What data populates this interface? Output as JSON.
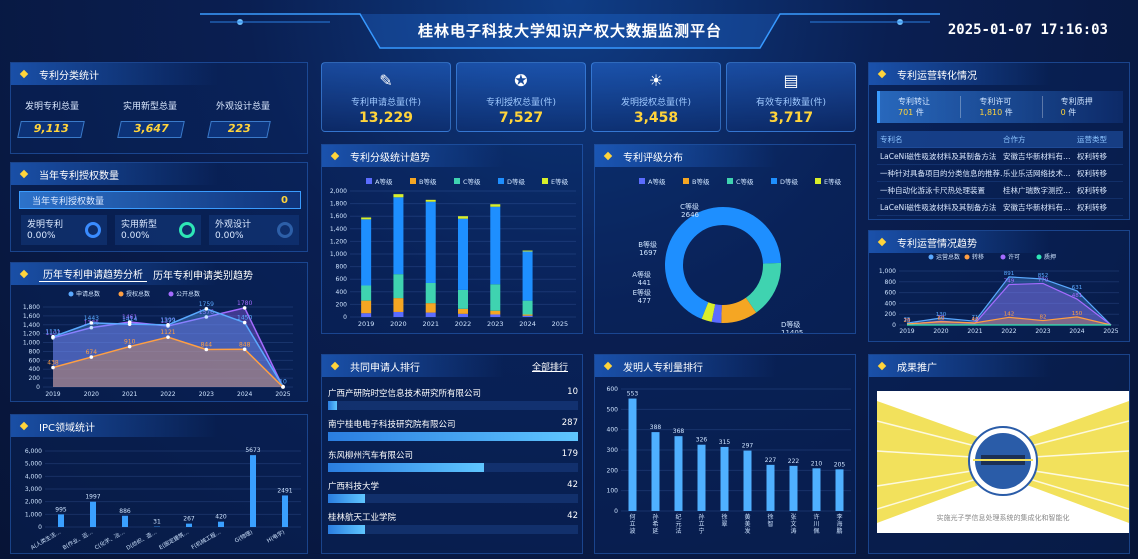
{
  "header": {
    "title": "桂林电子科技大学知识产权大数据监测平台",
    "datetime": "2025-01-07 17:16:03"
  },
  "stats": [
    {
      "label": "专利申请总量(件)",
      "value": "13,229",
      "icon": "edit-icon"
    },
    {
      "label": "专利授权总量(件)",
      "value": "7,527",
      "icon": "award-icon"
    },
    {
      "label": "发明授权总量(件)",
      "value": "3,458",
      "icon": "bulb-icon"
    },
    {
      "label": "有效专利数量(件)",
      "value": "3,717",
      "icon": "card-icon"
    }
  ],
  "category_stats": {
    "title": "专利分类统计",
    "items": [
      {
        "label": "发明专利总量",
        "value": "9,113"
      },
      {
        "label": "实用新型总量",
        "value": "3,647"
      },
      {
        "label": "外观设计总量",
        "value": "223"
      }
    ]
  },
  "annual_grant": {
    "title": "当年专利授权数量",
    "banner_label": "当年专利授权数量",
    "banner_value": "0",
    "items": [
      {
        "label": "发明专利",
        "value": "0.00%",
        "color": "#3a8cff"
      },
      {
        "label": "实用新型",
        "value": "0.00%",
        "color": "#2ee6b6"
      },
      {
        "label": "外观设计",
        "value": "0.00%",
        "color": "#2d5fa8"
      }
    ]
  },
  "trend": {
    "tab1": "历年专利申请趋势分析",
    "tab2": "历年专利申请类别趋势",
    "chart_data": {
      "type": "area",
      "x": [
        "2019",
        "2020",
        "2021",
        "2022",
        "2023",
        "2024",
        "2025"
      ],
      "ylim": [
        0,
        1800
      ],
      "yticks": [
        "0",
        "200",
        "400",
        "600",
        "800",
        "1,000",
        "1,200",
        "1,400",
        "1,600",
        "1,800"
      ],
      "series": [
        {
          "name": "申请总数",
          "color": "#5aa9ff",
          "values": [
            1131,
            1443,
            1414,
            1399,
            1759,
            1450,
            10
          ]
        },
        {
          "name": "授权总数",
          "color": "#ff9f43",
          "values": [
            438,
            674,
            910,
            1121,
            844,
            848,
            0
          ]
        },
        {
          "name": "公开总数",
          "color": "#a46bff",
          "values": [
            1107,
            1336,
            1461,
            1373,
            1576,
            1780,
            0
          ]
        }
      ]
    }
  },
  "ipc": {
    "title": "IPC领域统计",
    "chart_data": {
      "type": "bar",
      "categories": [
        "A(人类生活…",
        "B(作业、运…",
        "C(化学、冶…",
        "D(纺织、造…",
        "E(固定建筑…",
        "F(机械工程…",
        "G(物理)",
        "H(电学)"
      ],
      "values": [
        995,
        1997,
        886,
        31,
        267,
        420,
        5673,
        2491
      ],
      "ylim": [
        0,
        6000
      ],
      "yticks": [
        "0",
        "1,000",
        "2,000",
        "3,000",
        "4,000",
        "5,000",
        "6,000"
      ]
    }
  },
  "level_stats": {
    "title": "专利分级统计趋势",
    "chart_data": {
      "type": "bar",
      "categories": [
        "2019",
        "2020",
        "2021",
        "2022",
        "2023",
        "2024",
        "2025"
      ],
      "ylim": [
        0,
        2000
      ],
      "yticks": [
        "0",
        "200",
        "400",
        "600",
        "800",
        "1,000",
        "1,200",
        "1,400",
        "1,600",
        "1,800",
        "2,000"
      ],
      "series": [
        {
          "name": "A等级",
          "color": "#5b6cff",
          "values": [
            60,
            80,
            70,
            50,
            40,
            20,
            0
          ]
        },
        {
          "name": "B等级",
          "color": "#f5a623",
          "values": [
            200,
            220,
            150,
            80,
            60,
            20,
            0
          ]
        },
        {
          "name": "C等级",
          "color": "#3fd3b0",
          "values": [
            240,
            380,
            320,
            300,
            420,
            220,
            0
          ]
        },
        {
          "name": "D等级",
          "color": "#1e8fff",
          "values": [
            1050,
            1220,
            1290,
            1130,
            1230,
            780,
            0
          ]
        },
        {
          "name": "E等级",
          "color": "#d8ef2a",
          "values": [
            30,
            50,
            30,
            40,
            40,
            15,
            0
          ]
        }
      ]
    }
  },
  "rating": {
    "title": "专利评级分布",
    "chart_data": {
      "type": "pie",
      "slices": [
        {
          "name": "A等级",
          "value": 441,
          "color": "#5b6cff"
        },
        {
          "name": "B等级",
          "value": 1697,
          "color": "#f5a623"
        },
        {
          "name": "C等级",
          "value": 2646,
          "color": "#3fd3b0"
        },
        {
          "name": "D等级",
          "value": 11405,
          "color": "#1e8fff"
        },
        {
          "name": "E等级",
          "value": 477,
          "color": "#d8ef2a"
        }
      ]
    }
  },
  "applicants": {
    "title": "共同申请人排行",
    "link": "全部排行",
    "max": 287,
    "items": [
      {
        "name": "广西产研院时空信息技术研究所有限公司",
        "value": 10
      },
      {
        "name": "南宁桂电电子科技研究院有限公司",
        "value": 287
      },
      {
        "name": "东风柳州汽车有限公司",
        "value": 179
      },
      {
        "name": "广西科技大学",
        "value": 42
      },
      {
        "name": "桂林航天工业学院",
        "value": 42
      }
    ]
  },
  "inventors": {
    "title": "发明人专利量排行",
    "chart_data": {
      "type": "bar",
      "categories": [
        "何立波",
        "孙希延",
        "纪元法",
        "孙立宁",
        "徐翠",
        "黄美发",
        "徐智",
        "张文涛",
        "许川佩",
        "李海鹏"
      ],
      "values": [
        553,
        388,
        368,
        326,
        315,
        297,
        227,
        222,
        210,
        205
      ],
      "ylim": [
        0,
        600
      ],
      "yticks": [
        "0",
        "100",
        "200",
        "300",
        "400",
        "500",
        "600"
      ]
    }
  },
  "operation": {
    "title": "专利运营转化情况",
    "summary": [
      {
        "label": "专利转让",
        "value": "701",
        "unit": "件"
      },
      {
        "label": "专利许可",
        "value": "1,810",
        "unit": "件"
      },
      {
        "label": "专利质押",
        "value": "0",
        "unit": "件"
      }
    ],
    "columns": [
      "专利名",
      "合作方",
      "运营类型"
    ],
    "rows": [
      [
        "LaCeNi磁性吸波材料及其制备方法",
        "安徽吉华新材料有…",
        "权利转移"
      ],
      [
        "一种针对具备项目的分类信息的推荐…",
        "乐业乐活网络技术…",
        "权利转移"
      ],
      [
        "一种自动化游泳卡尺热处理装置",
        "桂林广瑞数字测控…",
        "权利转移"
      ],
      [
        "LaCeNi磁性吸波材料及其制备方法",
        "安徽吉华新材料有…",
        "权利转移"
      ]
    ]
  },
  "op_trend": {
    "title": "专利运营情况趋势",
    "chart_data": {
      "type": "area",
      "x": [
        "2019",
        "2020",
        "2021",
        "2022",
        "2023",
        "2024",
        "2025"
      ],
      "ylim": [
        0,
        1000
      ],
      "yticks": [
        "0",
        "200",
        "400",
        "600",
        "800",
        "1,000"
      ],
      "series": [
        {
          "name": "运营总数",
          "color": "#5aa9ff",
          "values": [
            35,
            130,
            71,
            891,
            852,
            631,
            0
          ]
        },
        {
          "name": "转移",
          "color": "#ff9f43",
          "values": [
            20,
            60,
            40,
            142,
            82,
            150,
            0
          ]
        },
        {
          "name": "许可",
          "color": "#a46bff",
          "values": [
            15,
            70,
            31,
            749,
            770,
            481,
            0
          ]
        },
        {
          "name": "质押",
          "color": "#2ee6b6",
          "values": [
            0,
            0,
            0,
            0,
            0,
            0,
            0
          ]
        }
      ]
    }
  },
  "achievement": {
    "title": "成果推广",
    "caption": "实施光子学信息处理系统的集成化和智能化"
  }
}
